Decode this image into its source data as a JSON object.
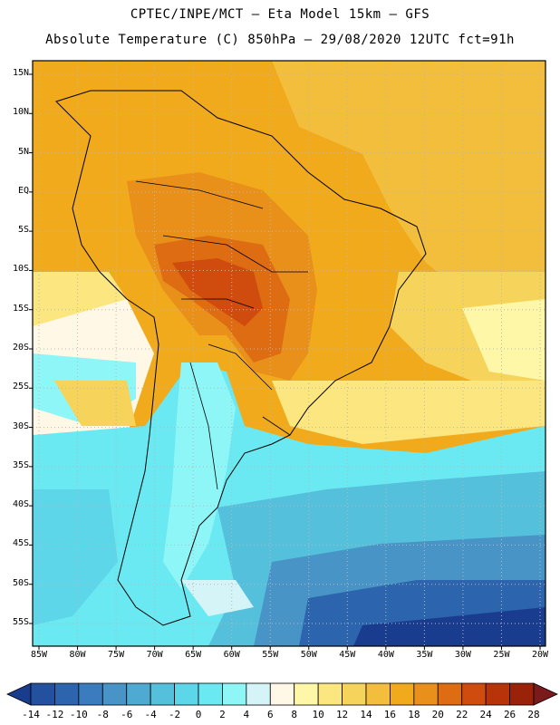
{
  "header": {
    "line1": "CPTEC/INPE/MCT —  Eta Model 15km — GFS",
    "line2": "Absolute Temperature (C) 850hPa — 29/08/2020 12UTC fct=91h"
  },
  "lat_labels": [
    "15N",
    "10N",
    "5N",
    "EQ",
    "5S",
    "10S",
    "15S",
    "20S",
    "25S",
    "30S",
    "35S",
    "40S",
    "45S",
    "50S",
    "55S"
  ],
  "lon_labels": [
    "85W",
    "80W",
    "75W",
    "70W",
    "65W",
    "60W",
    "55W",
    "50W",
    "45W",
    "40W",
    "35W",
    "30W",
    "25W",
    "20W"
  ],
  "colorbar": {
    "labels": [
      "-14",
      "-12",
      "-10",
      "-8",
      "-6",
      "-4",
      "-2",
      "0",
      "2",
      "4",
      "6",
      "8",
      "10",
      "12",
      "14",
      "16",
      "18",
      "20",
      "22",
      "24",
      "26",
      "28"
    ],
    "colors": [
      "#1a3c8e",
      "#2351a0",
      "#2c64ad",
      "#3a7cbd",
      "#4894c6",
      "#4eaad0",
      "#55c0dc",
      "#5dd6ea",
      "#6be9f2",
      "#8ff6f7",
      "#d4f4f8",
      "#fff8e6",
      "#fff7a8",
      "#fbe680",
      "#f6d45c",
      "#f2be3c",
      "#f0aa1c",
      "#e9901a",
      "#dd6c12",
      "#cf4b0e",
      "#b9330a",
      "#9a2208",
      "#7a1a1a"
    ]
  }
}
